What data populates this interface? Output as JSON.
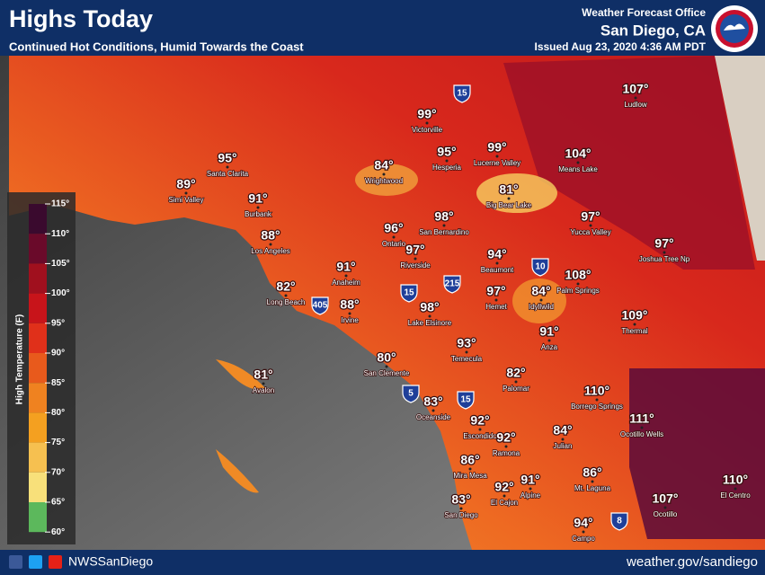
{
  "header": {
    "title": "Highs Today",
    "subtitle": "Continued Hot Conditions, Humid Towards the Coast",
    "office": "Weather Forecast Office",
    "location": "San Diego, CA",
    "issued": "Issued Aug 23, 2020 4:36 AM PDT"
  },
  "legend": {
    "title": "High Temperature (F)",
    "ticks": [
      "115°",
      "110°",
      "105°",
      "100°",
      "95°",
      "90°",
      "85°",
      "80°",
      "75°",
      "70°",
      "65°",
      "60°"
    ]
  },
  "cities": [
    {
      "temp": "107°",
      "name": "Ludlow"
    },
    {
      "temp": "99°",
      "name": "Victorville"
    },
    {
      "temp": "95°",
      "name": "Hesperia"
    },
    {
      "temp": "99°",
      "name": "Lucerne Valley"
    },
    {
      "temp": "104°",
      "name": "Means Lake"
    },
    {
      "temp": "95°",
      "name": "Santa Clarita"
    },
    {
      "temp": "84°",
      "name": "Wrightwood"
    },
    {
      "temp": "89°",
      "name": "Simi Valley"
    },
    {
      "temp": "81°",
      "name": "Big Bear Lake"
    },
    {
      "temp": "91°",
      "name": "Burbank"
    },
    {
      "temp": "96°",
      "name": "Ontario"
    },
    {
      "temp": "98°",
      "name": "San Bernardino"
    },
    {
      "temp": "97°",
      "name": "Yucca Valley"
    },
    {
      "temp": "88°",
      "name": "Los Angeles"
    },
    {
      "temp": "97°",
      "name": "Joshua Tree Np"
    },
    {
      "temp": "97°",
      "name": "Riverside"
    },
    {
      "temp": "94°",
      "name": "Beaumont"
    },
    {
      "temp": "91°",
      "name": "Anaheim"
    },
    {
      "temp": "108°",
      "name": "Palm Springs"
    },
    {
      "temp": "82°",
      "name": "Long Beach"
    },
    {
      "temp": "97°",
      "name": "Hemet"
    },
    {
      "temp": "84°",
      "name": "Idyllwild"
    },
    {
      "temp": "88°",
      "name": "Irvine"
    },
    {
      "temp": "98°",
      "name": "Lake Elsinore"
    },
    {
      "temp": "109°",
      "name": "Thermal"
    },
    {
      "temp": "91°",
      "name": "Anza"
    },
    {
      "temp": "93°",
      "name": "Temecula"
    },
    {
      "temp": "80°",
      "name": "San Clemente"
    },
    {
      "temp": "81°",
      "name": "Avalon"
    },
    {
      "temp": "82°",
      "name": "Palomar"
    },
    {
      "temp": "110°",
      "name": "Borrego Springs"
    },
    {
      "temp": "83°",
      "name": "Oceanside"
    },
    {
      "temp": "111°",
      "name": "Ocotillo Wells"
    },
    {
      "temp": "92°",
      "name": "Escondido"
    },
    {
      "temp": "84°",
      "name": "Julian"
    },
    {
      "temp": "92°",
      "name": "Ramona"
    },
    {
      "temp": "86°",
      "name": "Mira Mesa"
    },
    {
      "temp": "91°",
      "name": "Alpine"
    },
    {
      "temp": "86°",
      "name": "Mt. Laguna"
    },
    {
      "temp": "92°",
      "name": "El Cajon"
    },
    {
      "temp": "110°",
      "name": "El Centro"
    },
    {
      "temp": "83°",
      "name": "San Diego"
    },
    {
      "temp": "107°",
      "name": "Ocotillo"
    },
    {
      "temp": "94°",
      "name": "Campo"
    }
  ],
  "highways": [
    "15",
    "15",
    "215",
    "405",
    "10",
    "5",
    "15",
    "8"
  ],
  "footer": {
    "handle": "NWSSanDiego",
    "url": "weather.gov/sandiego"
  }
}
